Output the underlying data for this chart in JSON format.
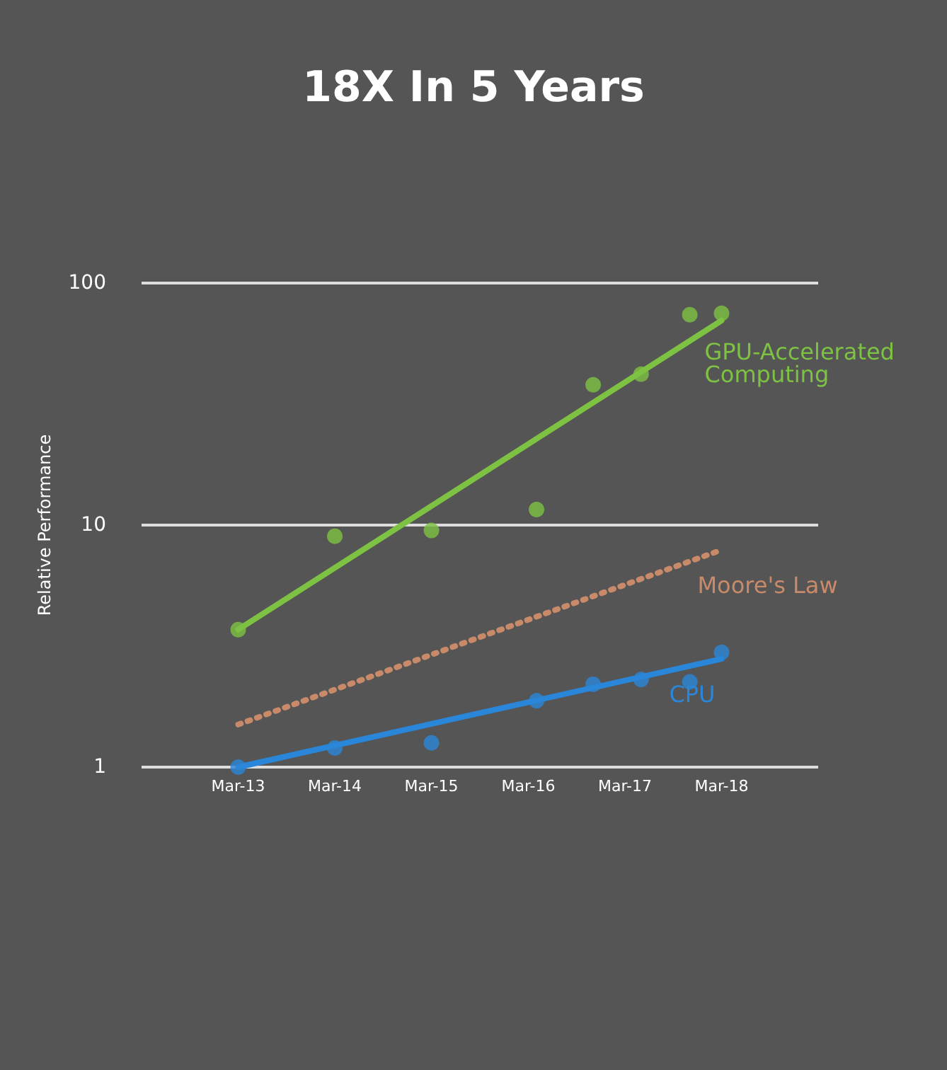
{
  "chart_data": {
    "type": "scatter",
    "title": "18X In 5 Years",
    "ylabel": "Relative Performance",
    "log": "y",
    "grid": "y",
    "legend": false,
    "xlim": [
      "2012-03",
      "2019-03"
    ],
    "xticks": [
      {
        "value": "2013-03",
        "label": "Mar-13"
      },
      {
        "value": "2014-03",
        "label": "Mar-14"
      },
      {
        "value": "2015-03",
        "label": "Mar-15"
      },
      {
        "value": "2016-03",
        "label": "Mar-16"
      },
      {
        "value": "2017-03",
        "label": "Mar-17"
      },
      {
        "value": "2018-03",
        "label": "Mar-18"
      }
    ],
    "ylim": [
      1,
      100
    ],
    "yticks": [
      1,
      10,
      100
    ],
    "series": [
      {
        "color": "#7dc242",
        "marker": "circle",
        "x": [
          "2013-03",
          "2014-03",
          "2015-03",
          "2016-04",
          "2016-11",
          "2017-05",
          "2017-11",
          "2018-03"
        ],
        "values": [
          3.7,
          9.0,
          9.5,
          11.6,
          38,
          42,
          74,
          75
        ]
      },
      {
        "type": "line",
        "name": "GPU-Accelerated Computing",
        "color": "#7dc242",
        "marker": "none",
        "line_style": "solid",
        "x": [
          "2013-03",
          "2018-03"
        ],
        "values": [
          3.7,
          70
        ]
      },
      {
        "type": "line",
        "name": "Moore's Law",
        "color": "#c98a6a",
        "marker": "none",
        "line_style": "dotted",
        "x": [
          "2013-03",
          "2018-03"
        ],
        "values": [
          1.5,
          7.9
        ]
      },
      {
        "color": "#2a86d8",
        "marker": "circle",
        "x": [
          "2013-03",
          "2014-03",
          "2015-03",
          "2016-04",
          "2016-11",
          "2017-05",
          "2017-11",
          "2018-03"
        ],
        "values": [
          1.0,
          1.2,
          1.26,
          1.88,
          2.2,
          2.3,
          2.25,
          2.98
        ]
      },
      {
        "type": "line",
        "name": "CPU",
        "color": "#2a86d8",
        "marker": "none",
        "line_style": "solid",
        "x": [
          "2013-03",
          "2018-03"
        ],
        "values": [
          1.0,
          2.8
        ]
      }
    ]
  }
}
